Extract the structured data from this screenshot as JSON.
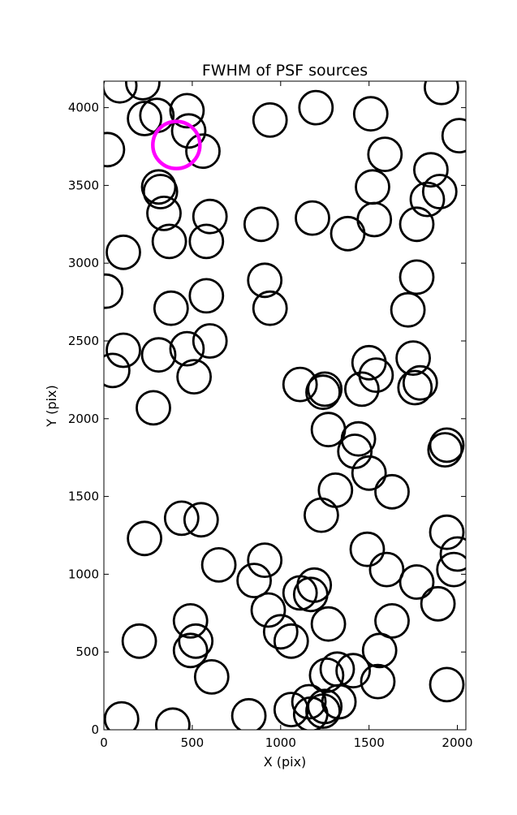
{
  "chart_data": {
    "type": "scatter",
    "title": "FWHM of PSF sources",
    "xlabel": "X (pix)",
    "ylabel": "Y (pix)",
    "xlim": [
      0,
      2048
    ],
    "ylim": [
      0,
      4170
    ],
    "xticks": [
      0,
      500,
      1000,
      1500,
      2000
    ],
    "yticks": [
      0,
      500,
      1000,
      1500,
      2000,
      2500,
      3000,
      3500,
      4000
    ],
    "grid": false,
    "marker": "open-circle",
    "colors": {
      "sources": "#000000",
      "highlight": "#ff00ff"
    },
    "series": [
      {
        "points": [
          [
            90,
            4140
          ],
          [
            220,
            4160
          ],
          [
            230,
            3930
          ],
          [
            300,
            3950
          ],
          [
            470,
            3980
          ],
          [
            480,
            3850
          ],
          [
            560,
            3720
          ],
          [
            20,
            3730
          ],
          [
            940,
            3920
          ],
          [
            1200,
            4000
          ],
          [
            1510,
            3960
          ],
          [
            1590,
            3700
          ],
          [
            1910,
            4130
          ],
          [
            2010,
            3820
          ],
          [
            1520,
            3490
          ],
          [
            1850,
            3600
          ],
          [
            1830,
            3410
          ],
          [
            1900,
            3460
          ],
          [
            1770,
            3250
          ],
          [
            1530,
            3280
          ],
          [
            1380,
            3190
          ],
          [
            1180,
            3290
          ],
          [
            890,
            3250
          ],
          [
            310,
            3490
          ],
          [
            320,
            3460
          ],
          [
            340,
            3320
          ],
          [
            370,
            3140
          ],
          [
            580,
            3140
          ],
          [
            600,
            3300
          ],
          [
            110,
            3070
          ],
          [
            10,
            2820
          ],
          [
            380,
            2710
          ],
          [
            580,
            2790
          ],
          [
            910,
            2890
          ],
          [
            940,
            2710
          ],
          [
            1770,
            2910
          ],
          [
            1720,
            2700
          ],
          [
            110,
            2440
          ],
          [
            50,
            2310
          ],
          [
            310,
            2410
          ],
          [
            470,
            2450
          ],
          [
            600,
            2500
          ],
          [
            510,
            2270
          ],
          [
            280,
            2070
          ],
          [
            1110,
            2220
          ],
          [
            1250,
            2190
          ],
          [
            1240,
            2170
          ],
          [
            1460,
            2190
          ],
          [
            1500,
            2360
          ],
          [
            1540,
            2280
          ],
          [
            1750,
            2390
          ],
          [
            1760,
            2200
          ],
          [
            1790,
            2230
          ],
          [
            1270,
            1930
          ],
          [
            1440,
            1870
          ],
          [
            1420,
            1790
          ],
          [
            1500,
            1650
          ],
          [
            1310,
            1540
          ],
          [
            1630,
            1530
          ],
          [
            1230,
            1380
          ],
          [
            1940,
            1830
          ],
          [
            1930,
            1800
          ],
          [
            440,
            1360
          ],
          [
            550,
            1350
          ],
          [
            230,
            1230
          ],
          [
            650,
            1060
          ],
          [
            1490,
            1160
          ],
          [
            1600,
            1030
          ],
          [
            1770,
            950
          ],
          [
            1940,
            1270
          ],
          [
            2000,
            1130
          ],
          [
            1980,
            1030
          ],
          [
            850,
            960
          ],
          [
            910,
            1090
          ],
          [
            930,
            770
          ],
          [
            1000,
            630
          ],
          [
            1060,
            570
          ],
          [
            1110,
            880
          ],
          [
            1170,
            870
          ],
          [
            1190,
            930
          ],
          [
            1270,
            680
          ],
          [
            1630,
            700
          ],
          [
            1890,
            810
          ],
          [
            490,
            700
          ],
          [
            520,
            570
          ],
          [
            490,
            510
          ],
          [
            610,
            340
          ],
          [
            200,
            570
          ],
          [
            1260,
            350
          ],
          [
            1320,
            390
          ],
          [
            1410,
            380
          ],
          [
            1560,
            510
          ],
          [
            1550,
            310
          ],
          [
            1940,
            290
          ],
          [
            1060,
            130
          ],
          [
            1160,
            180
          ],
          [
            1170,
            100
          ],
          [
            1240,
            120
          ],
          [
            1250,
            150
          ],
          [
            1330,
            180
          ],
          [
            820,
            90
          ],
          [
            390,
            30
          ],
          [
            100,
            70
          ]
        ]
      }
    ],
    "highlight": {
      "x": 410,
      "y": 3760
    }
  }
}
